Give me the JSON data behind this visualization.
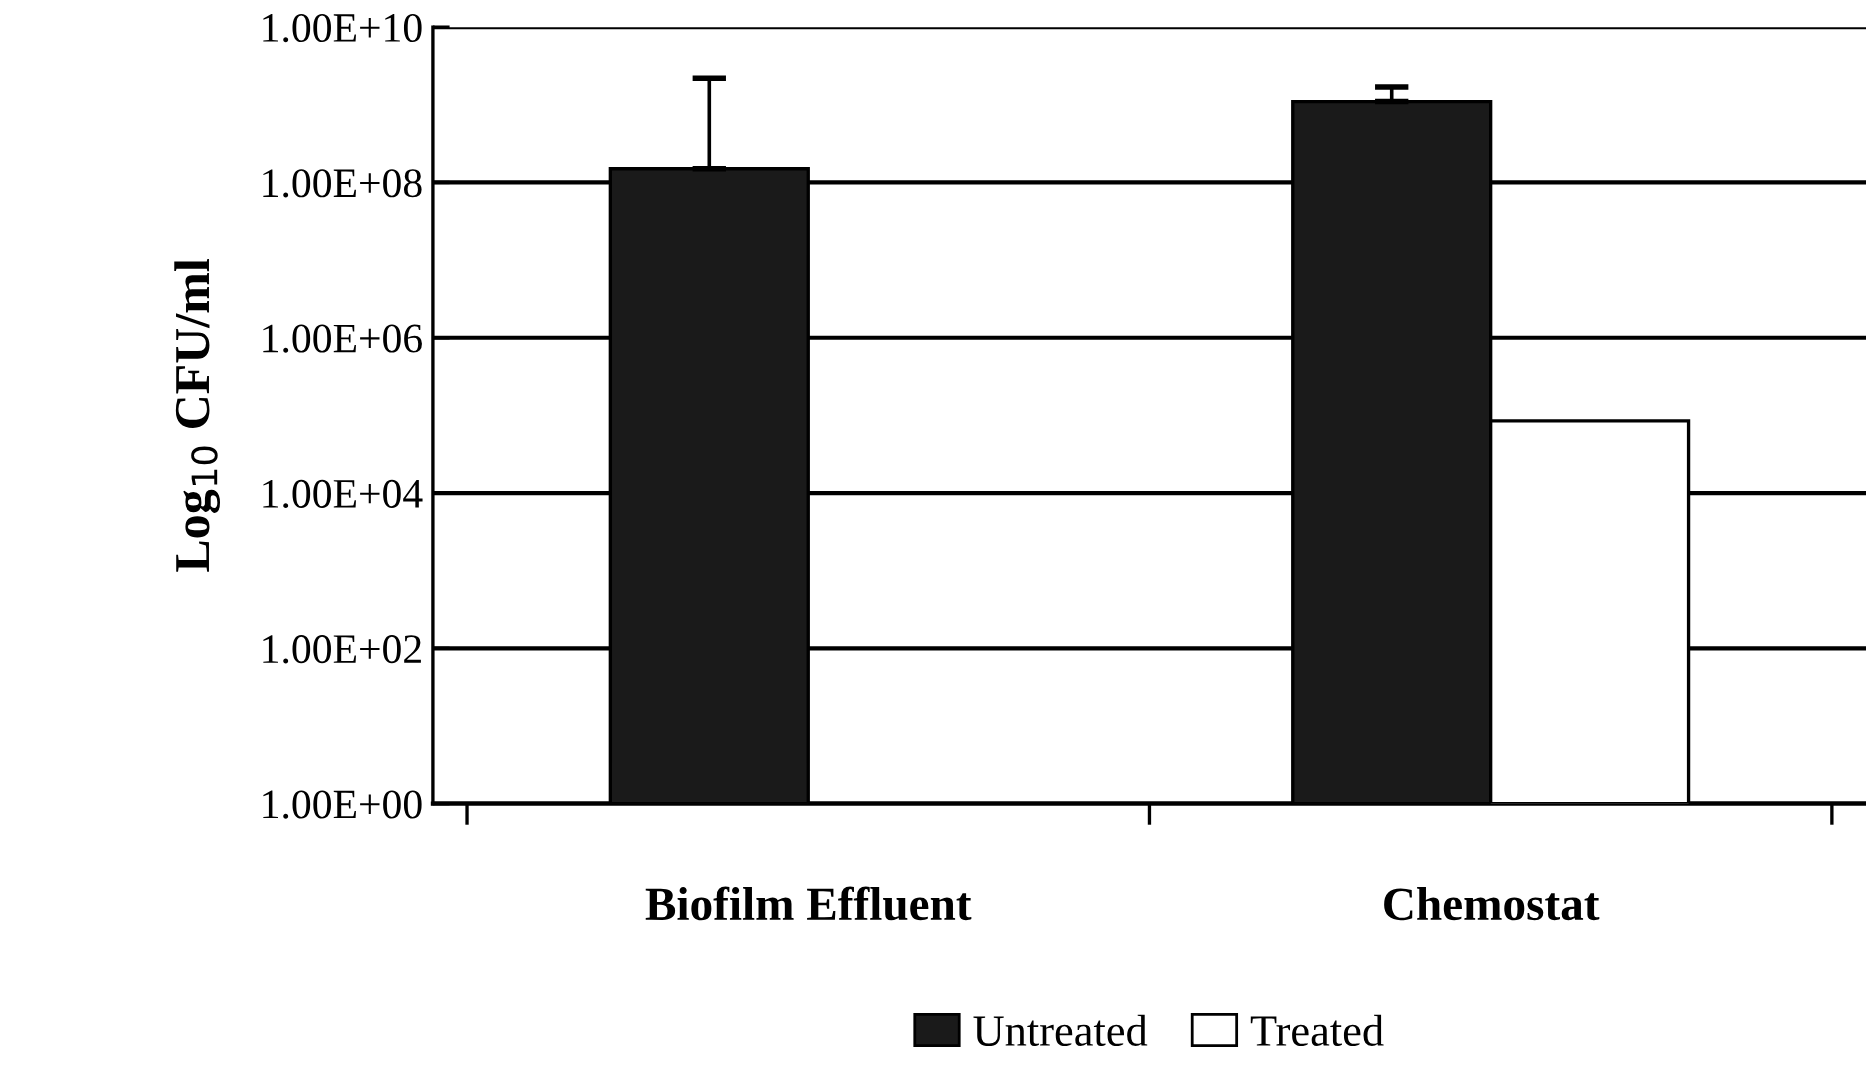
{
  "chart_data": {
    "type": "bar",
    "ylabel": "Log$_{10}$ CFU/ml",
    "categories": [
      "Biofilm Effluent",
      "Chemostat"
    ],
    "series": [
      {
        "name": "Untreated",
        "color": "#1a1a1a",
        "values": [
          150000000,
          1100000000
        ],
        "errors": [
          [
            150000000,
            2200000000
          ],
          [
            1100000000,
            1700000000
          ]
        ]
      },
      {
        "name": "Treated",
        "color": "#ffffff",
        "values": [
          null,
          85000
        ]
      }
    ],
    "log": "y",
    "ylim": [
      1,
      10000000000
    ],
    "yticks": [
      {
        "value": 1,
        "label": "1.00E+00"
      },
      {
        "value": 100,
        "label": "1.00E+02"
      },
      {
        "value": 10000,
        "label": "1.00E+04"
      },
      {
        "value": 1000000,
        "label": "1.00E+06"
      },
      {
        "value": 100000000,
        "label": "1.00E+08"
      },
      {
        "value": 10000000000,
        "label": "1.00E+10"
      }
    ],
    "grid": "y",
    "legend": "bottom"
  }
}
